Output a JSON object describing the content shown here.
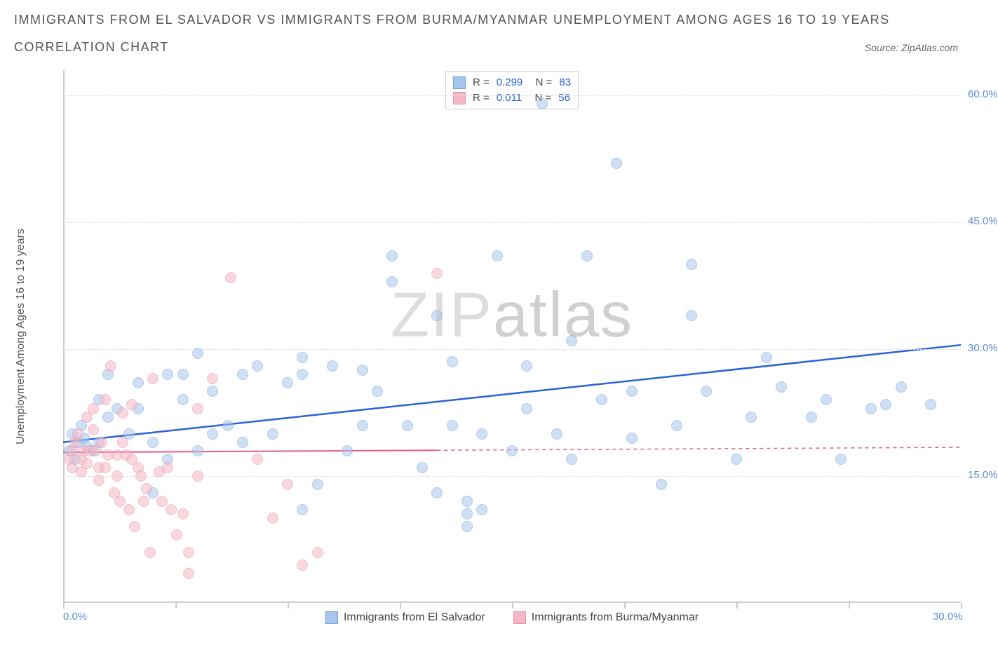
{
  "title": "IMMIGRANTS FROM EL SALVADOR VS IMMIGRANTS FROM BURMA/MYANMAR UNEMPLOYMENT AMONG AGES 16 TO 19 YEARS",
  "subtitle": "CORRELATION CHART",
  "source": "Source: ZipAtlas.com",
  "watermark_a": "ZIP",
  "watermark_b": "atlas",
  "y_axis_title": "Unemployment Among Ages 16 to 19 years",
  "chart": {
    "type": "scatter",
    "xlim": [
      0,
      30
    ],
    "ylim": [
      0,
      63
    ],
    "x_ticks": [
      0,
      3.75,
      7.5,
      11.25,
      15,
      18.75,
      22.5,
      26.25,
      30
    ],
    "x_tick_labels": {
      "0": "0.0%",
      "30": "30.0%"
    },
    "y_ticks": [
      15,
      30,
      45,
      60
    ],
    "y_tick_labels": {
      "15": "15.0%",
      "30": "30.0%",
      "45": "45.0%",
      "60": "60.0%"
    },
    "grid_color": "#e0e0e0",
    "axis_color": "#cccccc",
    "tick_label_color": "#5b8dd6",
    "background": "#ffffff",
    "series": [
      {
        "name": "Immigrants from El Salvador",
        "color_fill": "#a8c6ec",
        "color_stroke": "#6da3e0",
        "fill_opacity": 0.55,
        "R": "0.299",
        "N": "83",
        "trend": {
          "x1": 0,
          "y1": 19,
          "x2": 30,
          "y2": 30.5,
          "color": "#2962d9",
          "width": 2.5,
          "solid_until_x": 30
        },
        "points": [
          [
            0.2,
            18
          ],
          [
            0.3,
            20
          ],
          [
            0.4,
            17
          ],
          [
            0.5,
            19
          ],
          [
            0.6,
            21
          ],
          [
            0.7,
            19.5
          ],
          [
            0.8,
            18.5
          ],
          [
            1.0,
            18
          ],
          [
            1.2,
            19
          ],
          [
            1.2,
            24
          ],
          [
            1.5,
            27
          ],
          [
            1.5,
            22
          ],
          [
            1.8,
            23
          ],
          [
            2.2,
            20
          ],
          [
            2.5,
            26
          ],
          [
            2.5,
            23
          ],
          [
            3.0,
            13
          ],
          [
            3.0,
            19
          ],
          [
            3.5,
            17
          ],
          [
            3.5,
            27
          ],
          [
            4.0,
            24
          ],
          [
            4.0,
            27
          ],
          [
            4.5,
            18
          ],
          [
            4.5,
            29.5
          ],
          [
            5.0,
            20
          ],
          [
            5.0,
            25
          ],
          [
            5.5,
            21
          ],
          [
            6.0,
            19
          ],
          [
            6.0,
            27
          ],
          [
            6.5,
            28
          ],
          [
            7.0,
            20
          ],
          [
            7.5,
            26
          ],
          [
            8.0,
            11
          ],
          [
            8.0,
            27
          ],
          [
            8.0,
            29
          ],
          [
            8.5,
            14
          ],
          [
            9.0,
            28
          ],
          [
            9.5,
            18
          ],
          [
            10.0,
            21
          ],
          [
            10.0,
            27.5
          ],
          [
            10.5,
            25
          ],
          [
            11.0,
            38
          ],
          [
            11.0,
            41
          ],
          [
            11.5,
            21
          ],
          [
            12.0,
            16
          ],
          [
            12.5,
            34
          ],
          [
            12.5,
            13
          ],
          [
            13.0,
            21
          ],
          [
            13.0,
            28.5
          ],
          [
            13.5,
            9
          ],
          [
            13.5,
            12
          ],
          [
            13.5,
            10.5
          ],
          [
            14.0,
            20
          ],
          [
            14.0,
            11
          ],
          [
            14.5,
            41
          ],
          [
            15.0,
            18
          ],
          [
            15.5,
            23
          ],
          [
            15.5,
            28
          ],
          [
            16.0,
            59
          ],
          [
            16.5,
            20
          ],
          [
            17.0,
            17
          ],
          [
            17.0,
            31
          ],
          [
            17.5,
            41
          ],
          [
            18.0,
            24
          ],
          [
            18.5,
            52
          ],
          [
            19.0,
            19.5
          ],
          [
            19.0,
            25
          ],
          [
            20.0,
            14
          ],
          [
            20.5,
            21
          ],
          [
            21.0,
            40
          ],
          [
            21.0,
            34
          ],
          [
            21.5,
            25
          ],
          [
            22.5,
            17
          ],
          [
            23.0,
            22
          ],
          [
            23.5,
            29
          ],
          [
            24.0,
            25.5
          ],
          [
            25.0,
            22
          ],
          [
            25.5,
            24
          ],
          [
            26.0,
            17
          ],
          [
            27.0,
            23
          ],
          [
            27.5,
            23.5
          ],
          [
            28.0,
            25.5
          ],
          [
            29.0,
            23.5
          ]
        ]
      },
      {
        "name": "Immigrants from Burma/Myanmar",
        "color_fill": "#f5b8c6",
        "color_stroke": "#eb8fa5",
        "fill_opacity": 0.55,
        "R": "0.011",
        "N": "56",
        "trend": {
          "x1": 0,
          "y1": 17.8,
          "x2": 30,
          "y2": 18.4,
          "color": "#e85a8a",
          "width": 2,
          "solid_until_x": 12.5
        },
        "points": [
          [
            0.2,
            17
          ],
          [
            0.3,
            18
          ],
          [
            0.3,
            16
          ],
          [
            0.4,
            19
          ],
          [
            0.5,
            20
          ],
          [
            0.6,
            17
          ],
          [
            0.6,
            15.5
          ],
          [
            0.7,
            18
          ],
          [
            0.8,
            16.5
          ],
          [
            0.8,
            22
          ],
          [
            0.9,
            18
          ],
          [
            1.0,
            23
          ],
          [
            1.0,
            20.5
          ],
          [
            1.1,
            18
          ],
          [
            1.2,
            16
          ],
          [
            1.2,
            14.5
          ],
          [
            1.3,
            19
          ],
          [
            1.4,
            24
          ],
          [
            1.4,
            16
          ],
          [
            1.5,
            17.5
          ],
          [
            1.6,
            28
          ],
          [
            1.7,
            13
          ],
          [
            1.8,
            15
          ],
          [
            1.8,
            17.5
          ],
          [
            1.9,
            12
          ],
          [
            2.0,
            22.5
          ],
          [
            2.0,
            19
          ],
          [
            2.1,
            17.5
          ],
          [
            2.2,
            11
          ],
          [
            2.3,
            23.5
          ],
          [
            2.3,
            17
          ],
          [
            2.4,
            9
          ],
          [
            2.5,
            16
          ],
          [
            2.6,
            15
          ],
          [
            2.7,
            12
          ],
          [
            2.8,
            13.5
          ],
          [
            2.9,
            6
          ],
          [
            3.0,
            26.5
          ],
          [
            3.2,
            15.5
          ],
          [
            3.3,
            12
          ],
          [
            3.5,
            16
          ],
          [
            3.6,
            11
          ],
          [
            3.8,
            8
          ],
          [
            4.0,
            10.5
          ],
          [
            4.2,
            6
          ],
          [
            4.2,
            3.5
          ],
          [
            4.5,
            23
          ],
          [
            4.5,
            15
          ],
          [
            5.0,
            26.5
          ],
          [
            5.6,
            38.5
          ],
          [
            6.5,
            17
          ],
          [
            7.0,
            10
          ],
          [
            7.5,
            14
          ],
          [
            8.0,
            4.5
          ],
          [
            8.5,
            6
          ],
          [
            12.5,
            39
          ]
        ]
      }
    ],
    "legend_bottom": [
      {
        "label": "Immigrants from El Salvador",
        "fill": "#a8c6ec",
        "stroke": "#6da3e0"
      },
      {
        "label": "Immigrants from Burma/Myanmar",
        "fill": "#f5b8c6",
        "stroke": "#eb8fa5"
      }
    ]
  }
}
